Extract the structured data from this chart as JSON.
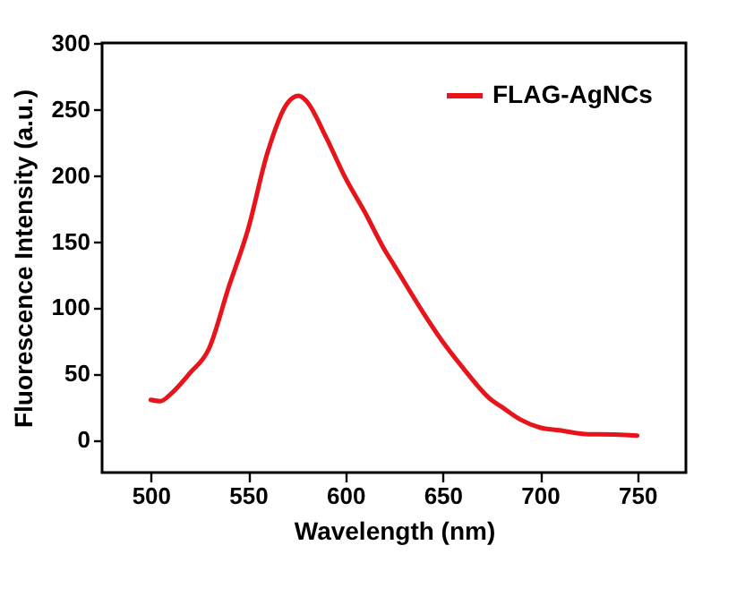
{
  "chart_data": {
    "type": "line",
    "xlabel": "Wavelength (nm)",
    "ylabel": "Fluorescence Intensity (a.u.)",
    "xlim": [
      475,
      775
    ],
    "xticks": [
      500,
      550,
      600,
      650,
      700,
      750
    ],
    "ylim": [
      -25,
      300
    ],
    "yticks": [
      0,
      50,
      100,
      150,
      200,
      250,
      300
    ],
    "legend": "top right",
    "grid": false,
    "x": [
      500,
      505,
      510,
      520,
      530,
      540,
      550,
      560,
      570,
      576,
      580,
      590,
      600,
      610,
      620,
      625,
      640,
      650,
      660,
      675,
      680,
      690,
      700,
      710,
      725,
      730,
      750
    ],
    "series": [
      {
        "name": "FLAG-AgNCs",
        "color": "#e8141c",
        "values": [
          30,
          29,
          34,
          50,
          69,
          115,
          159,
          217,
          254,
          260,
          256,
          229,
          198,
          172,
          144,
          132,
          96,
          74,
          55,
          30,
          25,
          15,
          9,
          7,
          4,
          4,
          3
        ]
      }
    ]
  }
}
